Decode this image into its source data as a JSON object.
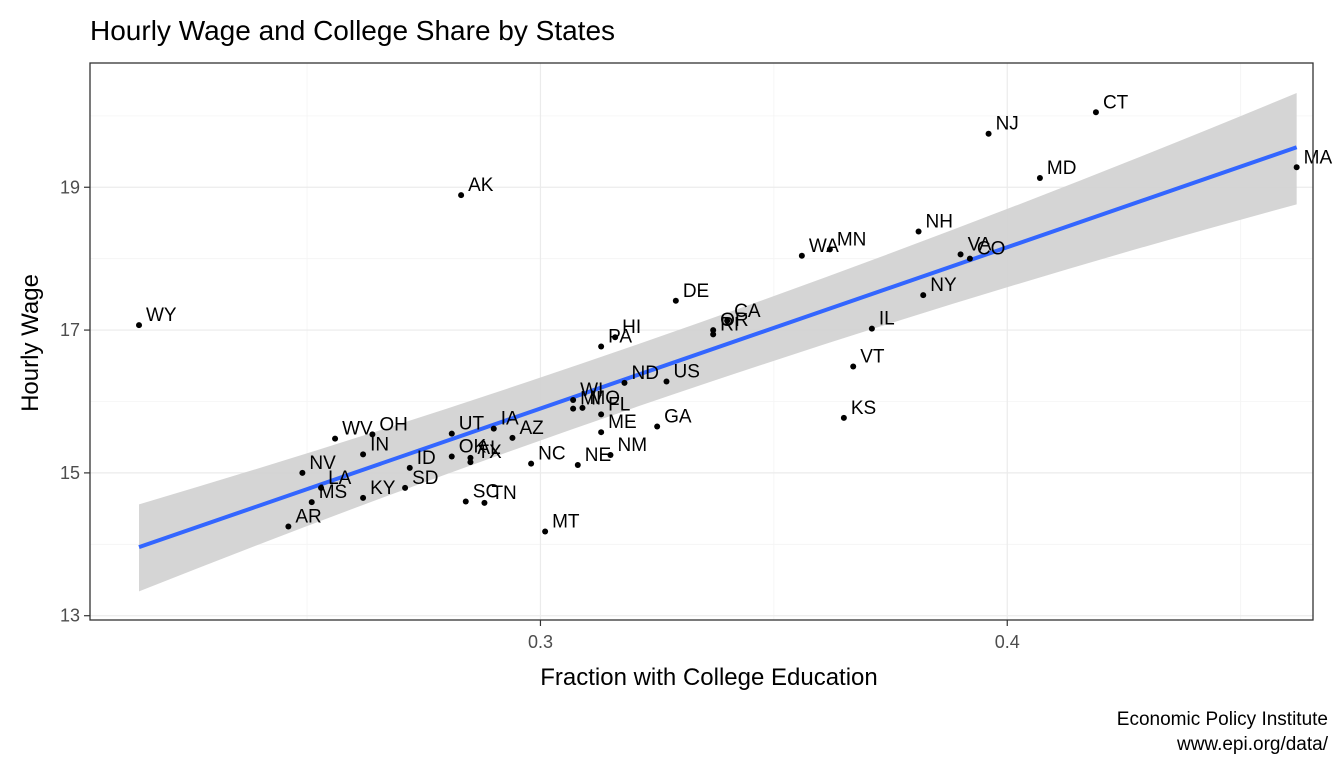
{
  "chart_data": {
    "type": "scatter",
    "title": "Hourly Wage and College Share by States",
    "xlabel": "Fraction with College Education",
    "ylabel": "Hourly Wage",
    "caption": [
      "Economic Policy Institute",
      "www.epi.org/data/"
    ],
    "xlim": [
      0.2035,
      0.4655
    ],
    "ylim": [
      12.94,
      20.74
    ],
    "x_ticks": [
      0.3,
      0.4
    ],
    "x_tick_labels": [
      "0.3",
      "0.4"
    ],
    "y_ticks": [
      13,
      15,
      17,
      19
    ],
    "y_tick_labels": [
      "13",
      "15",
      "17",
      "19"
    ],
    "grid": true,
    "colors": {
      "line": "#3366ff",
      "band": "#d3d3d3",
      "point": "#000000"
    },
    "trend": {
      "x": [
        0.214,
        0.462
      ],
      "y": [
        13.96,
        19.56
      ],
      "band_lo": [
        13.34,
        18.76
      ],
      "band_hi": [
        14.56,
        20.32
      ]
    },
    "points": [
      {
        "label": "CT",
        "x": 0.419,
        "y": 20.05
      },
      {
        "label": "NJ",
        "x": 0.396,
        "y": 19.75
      },
      {
        "label": "MD",
        "x": 0.407,
        "y": 19.13
      },
      {
        "label": "MA",
        "x": 0.462,
        "y": 19.28
      },
      {
        "label": "AK",
        "x": 0.283,
        "y": 18.89
      },
      {
        "label": "NH",
        "x": 0.381,
        "y": 18.38
      },
      {
        "label": "MN",
        "x": 0.362,
        "y": 18.13
      },
      {
        "label": "WA",
        "x": 0.356,
        "y": 18.04
      },
      {
        "label": "VA",
        "x": 0.39,
        "y": 18.06
      },
      {
        "label": "CO",
        "x": 0.392,
        "y": 18.0
      },
      {
        "label": "NY",
        "x": 0.382,
        "y": 17.49
      },
      {
        "label": "DE",
        "x": 0.329,
        "y": 17.41
      },
      {
        "label": "WY",
        "x": 0.214,
        "y": 17.07
      },
      {
        "label": "CA",
        "x": 0.34,
        "y": 17.13
      },
      {
        "label": "OR",
        "x": 0.337,
        "y": 17.0
      },
      {
        "label": "RI",
        "x": 0.337,
        "y": 16.94
      },
      {
        "label": "IL",
        "x": 0.371,
        "y": 17.02
      },
      {
        "label": "HI",
        "x": 0.316,
        "y": 16.9
      },
      {
        "label": "PA",
        "x": 0.313,
        "y": 16.77
      },
      {
        "label": "VT",
        "x": 0.367,
        "y": 16.49
      },
      {
        "label": "ND",
        "x": 0.318,
        "y": 16.26
      },
      {
        "label": "US",
        "x": 0.327,
        "y": 16.28
      },
      {
        "label": "WI",
        "x": 0.307,
        "y": 16.02
      },
      {
        "label": "MI",
        "x": 0.307,
        "y": 15.9
      },
      {
        "label": "MO",
        "x": 0.309,
        "y": 15.91
      },
      {
        "label": "FL",
        "x": 0.313,
        "y": 15.82
      },
      {
        "label": "KS",
        "x": 0.365,
        "y": 15.77
      },
      {
        "label": "GA",
        "x": 0.325,
        "y": 15.65
      },
      {
        "label": "ME",
        "x": 0.313,
        "y": 15.57
      },
      {
        "label": "IA",
        "x": 0.29,
        "y": 15.62
      },
      {
        "label": "UT",
        "x": 0.281,
        "y": 15.55
      },
      {
        "label": "AZ",
        "x": 0.294,
        "y": 15.49
      },
      {
        "label": "OH",
        "x": 0.264,
        "y": 15.54
      },
      {
        "label": "WV",
        "x": 0.256,
        "y": 15.48
      },
      {
        "label": "IN",
        "x": 0.262,
        "y": 15.26
      },
      {
        "label": "NM",
        "x": 0.315,
        "y": 15.25
      },
      {
        "label": "OK",
        "x": 0.281,
        "y": 15.23
      },
      {
        "label": "AL",
        "x": 0.285,
        "y": 15.21
      },
      {
        "label": "TX",
        "x": 0.285,
        "y": 15.15
      },
      {
        "label": "NC",
        "x": 0.298,
        "y": 15.13
      },
      {
        "label": "NE",
        "x": 0.308,
        "y": 15.11
      },
      {
        "label": "ID",
        "x": 0.272,
        "y": 15.07
      },
      {
        "label": "NV",
        "x": 0.249,
        "y": 15.0
      },
      {
        "label": "SD",
        "x": 0.271,
        "y": 14.79
      },
      {
        "label": "LA",
        "x": 0.253,
        "y": 14.79
      },
      {
        "label": "KY",
        "x": 0.262,
        "y": 14.65
      },
      {
        "label": "MS",
        "x": 0.251,
        "y": 14.59
      },
      {
        "label": "SC",
        "x": 0.284,
        "y": 14.6
      },
      {
        "label": "TN",
        "x": 0.288,
        "y": 14.58
      },
      {
        "label": "AR",
        "x": 0.246,
        "y": 14.25
      },
      {
        "label": "MT",
        "x": 0.301,
        "y": 14.18
      }
    ]
  }
}
